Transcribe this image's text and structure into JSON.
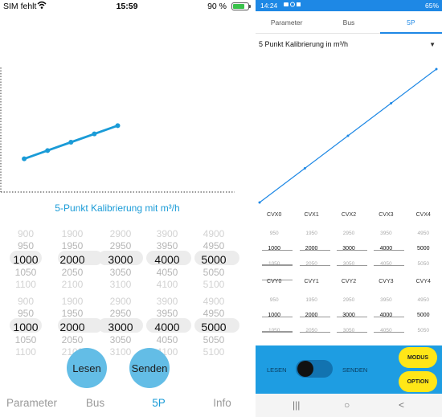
{
  "ios": {
    "status": {
      "carrier": "SIM fehlt",
      "time": "15:59",
      "battery": "90 %"
    },
    "chart_data": {
      "type": "line",
      "x": [
        1000,
        2000,
        3000,
        4000,
        5000
      ],
      "y": [
        1000,
        2000,
        3000,
        4000,
        5000
      ],
      "title": "5-Punkt Kalibrierung mit m³/h",
      "color": "#1a9bd7"
    },
    "picker_columns": [
      [
        "900",
        "950",
        "1000",
        "1050",
        "1100"
      ],
      [
        "1900",
        "1950",
        "2000",
        "2050",
        "2100"
      ],
      [
        "2900",
        "2950",
        "3000",
        "3050",
        "3100"
      ],
      [
        "3900",
        "3950",
        "4000",
        "4050",
        "4100"
      ],
      [
        "4900",
        "4950",
        "5000",
        "5050",
        "5100"
      ]
    ],
    "buttons": {
      "lesen": "Lesen",
      "senden": "Senden"
    },
    "tabs": [
      {
        "label": "Parameter",
        "active": false
      },
      {
        "label": "Bus",
        "active": false
      },
      {
        "label": "5P",
        "active": true
      },
      {
        "label": "Info",
        "active": false
      }
    ],
    "accent": "#1a9bd7",
    "button_color": "#63bde6"
  },
  "android": {
    "status": {
      "time": "14:24",
      "battery": "65%"
    },
    "tabs": [
      {
        "label": "Parameter",
        "active": false
      },
      {
        "label": "Bus",
        "active": false
      },
      {
        "label": "5P",
        "active": true
      }
    ],
    "dropdown": {
      "value": "5 Punkt Kalibrierung in m³/h"
    },
    "chart_data": {
      "type": "line",
      "x": [
        950,
        2000,
        3000,
        4000,
        5050
      ],
      "y": [
        950,
        2000,
        3000,
        4000,
        5050
      ],
      "color": "#1e88e5"
    },
    "cvx": {
      "headers": [
        "CVX0",
        "CVX1",
        "CVX2",
        "CVX3",
        "CVX4"
      ],
      "above": [
        "950",
        "1950",
        "2950",
        "3950",
        "4950"
      ],
      "values": [
        "1000",
        "2000",
        "3000",
        "4000",
        "5000"
      ],
      "below": [
        "1050",
        "2050",
        "3050",
        "4050",
        "5050"
      ]
    },
    "cvy": {
      "headers": [
        "CVY0",
        "CVY1",
        "CVY2",
        "CVY3",
        "CVY4"
      ],
      "above": [
        "950",
        "1950",
        "2950",
        "3950",
        "4950"
      ],
      "values": [
        "1000",
        "2000",
        "3000",
        "4000",
        "5000"
      ],
      "below": [
        "1050",
        "2050",
        "3050",
        "4050",
        "5050"
      ]
    },
    "bottom": {
      "lesen": "LESEN",
      "senden": "SENDEN",
      "modus": "MODUS",
      "option": "OPTION"
    },
    "navbar": {
      "recents": "|||",
      "home": "○",
      "back": "<"
    },
    "panel_color": "#1e9de2",
    "button_color": "#ffe617"
  }
}
